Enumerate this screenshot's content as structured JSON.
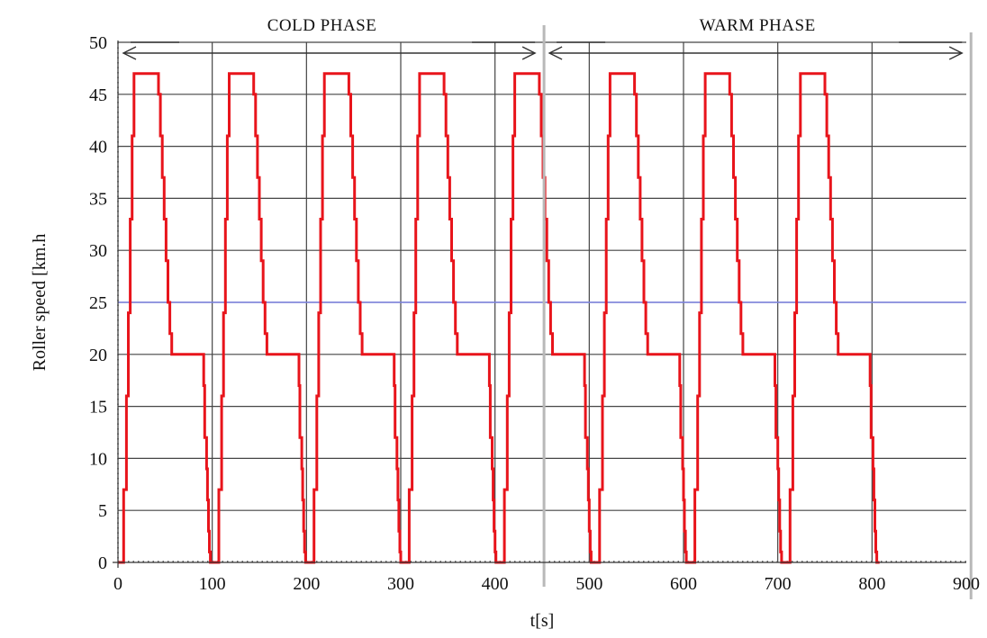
{
  "chart_data": {
    "type": "line",
    "title": "",
    "xlabel": "t[s]",
    "ylabel": "Roller speed [km.h",
    "xlim": [
      0,
      900
    ],
    "ylim": [
      0,
      50
    ],
    "x_ticks": [
      0,
      100,
      200,
      300,
      400,
      500,
      600,
      700,
      800,
      900
    ],
    "y_ticks": [
      0,
      5,
      10,
      15,
      20,
      25,
      30,
      35,
      40,
      45,
      50
    ],
    "grid": true,
    "phases": [
      {
        "label": "COLD PHASE",
        "x_start": 0,
        "x_end": 452
      },
      {
        "label": "WARM PHASE",
        "x_start": 452,
        "x_end": 905
      }
    ],
    "reference_line": {
      "y": 25
    },
    "cycle_period": 101,
    "cycle_count": 8,
    "series": [
      {
        "color": "#e8141b",
        "cycle_x": [
          0,
          4,
          6,
          9,
          11,
          13,
          15,
          17,
          19,
          21,
          41,
          43,
          45,
          47,
          49,
          51,
          53,
          55,
          57,
          59,
          61,
          65,
          89,
          91,
          92,
          94,
          95,
          96,
          97,
          98,
          99,
          101
        ],
        "cycle_y": [
          0,
          0,
          7,
          16,
          24,
          33,
          41,
          47,
          47,
          47,
          47,
          45,
          41,
          37,
          33,
          29,
          25,
          22,
          20,
          20,
          20,
          20,
          20,
          17,
          12,
          9,
          6,
          3,
          1,
          0,
          0,
          0
        ]
      }
    ]
  }
}
